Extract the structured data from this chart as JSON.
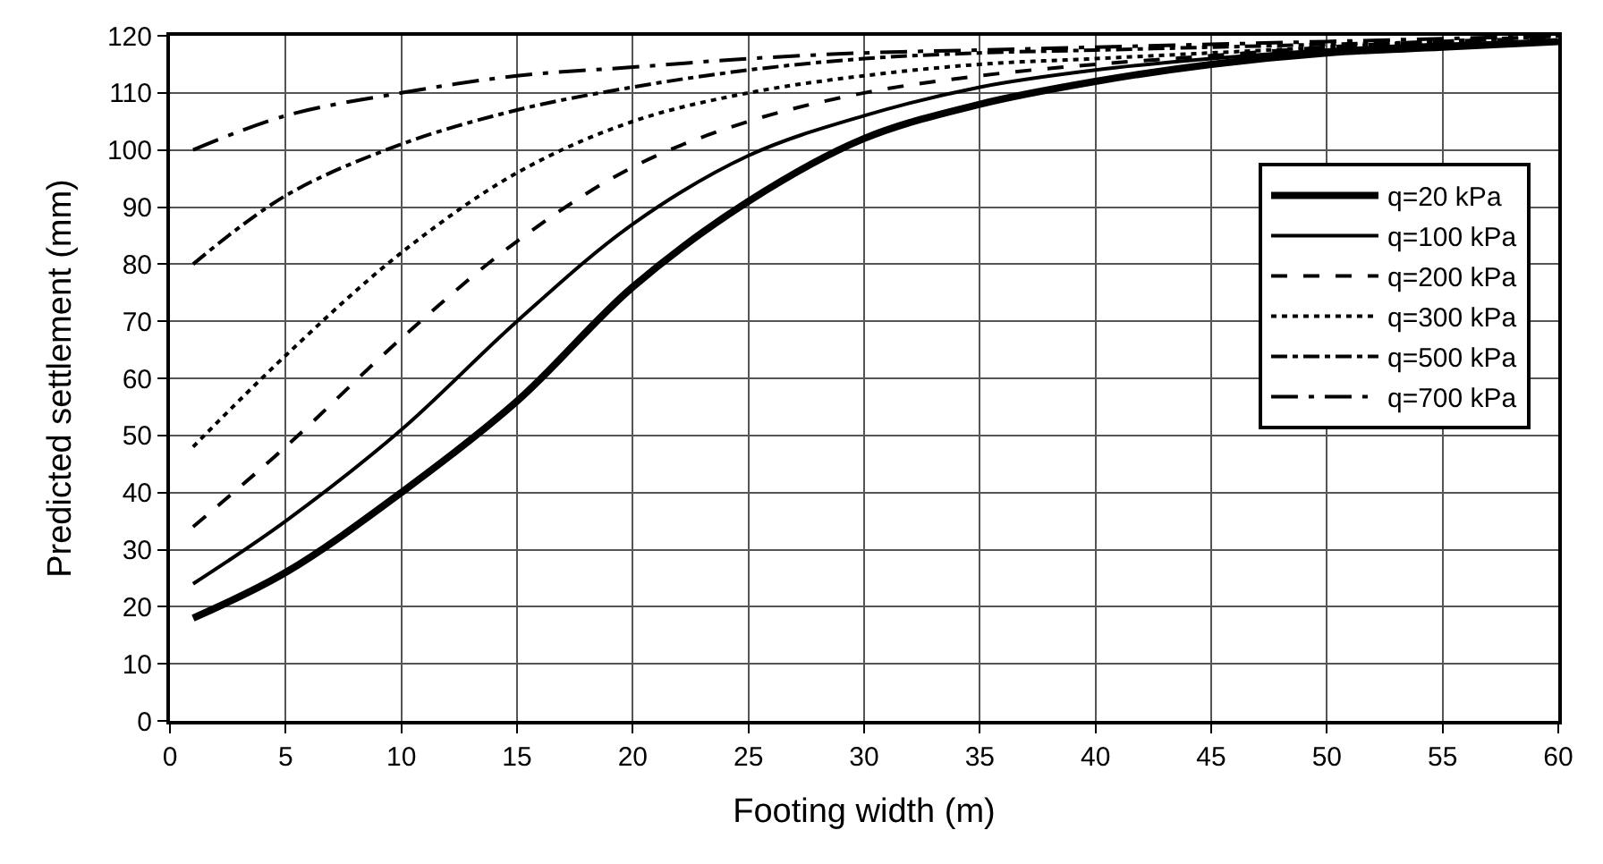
{
  "chart_data": {
    "type": "line",
    "xlabel": "Footing width (m)",
    "ylabel": "Predicted settlement (mm)",
    "x": [
      1,
      5,
      10,
      15,
      20,
      25,
      30,
      35,
      40,
      45,
      50,
      55,
      60
    ],
    "series": [
      {
        "name": "q=20 kPa",
        "color": "#000000",
        "line_style": "solid",
        "values": [
          18,
          26,
          40,
          56,
          76,
          91,
          102,
          108,
          112,
          115,
          117,
          118,
          119
        ]
      },
      {
        "name": "q=100 kPa",
        "color": "#000000",
        "line_style": "solid",
        "values": [
          24,
          35,
          51,
          70,
          87,
          99,
          106,
          111,
          114,
          116,
          117.5,
          118.5,
          119
        ]
      },
      {
        "name": "q=200 kPa",
        "color": "#000000",
        "line_style": "dashed",
        "values": [
          34,
          48,
          67,
          84,
          97,
          105,
          110,
          113,
          115,
          116.5,
          118,
          119,
          119.5
        ]
      },
      {
        "name": "q=300 kPa",
        "color": "#000000",
        "line_style": "dotted",
        "values": [
          48,
          64,
          82,
          96,
          105,
          110,
          113,
          115,
          116,
          117,
          118,
          119,
          120
        ]
      },
      {
        "name": "q=500 kPa",
        "color": "#000000",
        "line_style": "dashdot",
        "values": [
          80,
          92,
          101,
          107,
          111,
          114,
          116,
          117,
          117.5,
          118,
          118.5,
          119,
          120
        ]
      },
      {
        "name": "q=700 kPa",
        "color": "#000000",
        "line_style": "longdashdot",
        "values": [
          100,
          106,
          110,
          113,
          114.5,
          116,
          117,
          117.5,
          118,
          118.5,
          119,
          119.5,
          120
        ]
      }
    ],
    "xlim": [
      0,
      60
    ],
    "xticks": [
      0,
      5,
      10,
      15,
      20,
      25,
      30,
      35,
      40,
      45,
      50,
      55,
      60
    ],
    "ylim": [
      0,
      120
    ],
    "yticks": [
      0,
      10,
      20,
      30,
      40,
      50,
      60,
      70,
      80,
      90,
      100,
      110,
      120
    ],
    "grid": true,
    "legend": "right",
    "marker": "none"
  }
}
